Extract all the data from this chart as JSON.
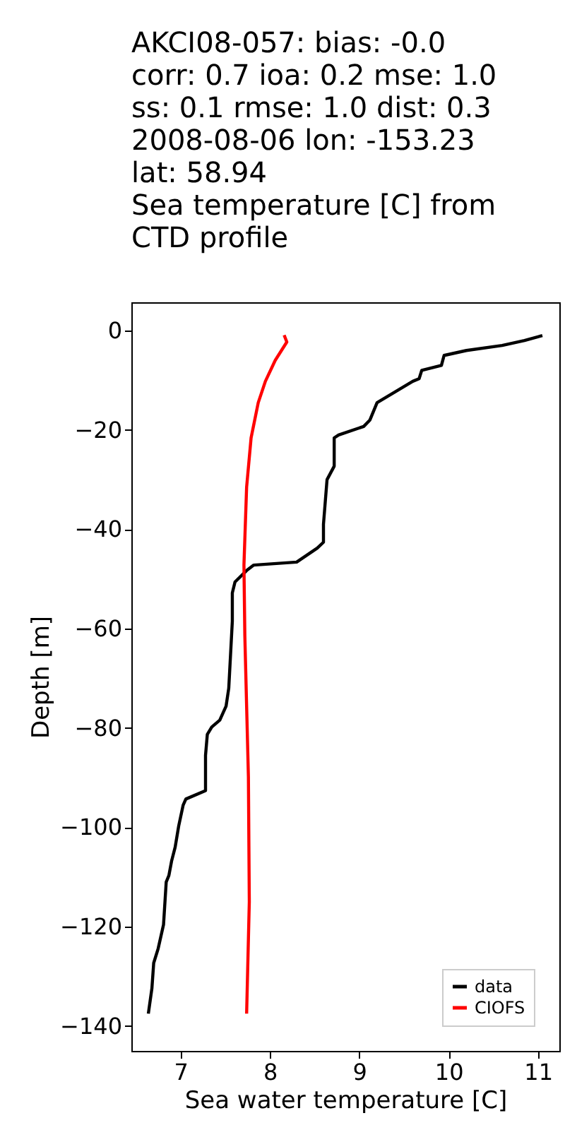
{
  "chart_data": {
    "type": "line",
    "title": "AKCI08-057: bias: -0.0\ncorr: 0.7  ioa: 0.2  mse: 1.0\n ss: 0.1  rmse: 1.0  dist: 0.3\n\n2008-08-06 lon: -153.23\nlat: 58.94\nSea temperature [C] from\nCTD profile",
    "xlabel": "Sea water temperature [C]",
    "ylabel": "Depth [m]",
    "xlim": [
      6.45,
      11.24
    ],
    "ylim": [
      -145,
      5.7
    ],
    "xticks": [
      7,
      8,
      9,
      10,
      11
    ],
    "yticks": [
      -140,
      -120,
      -100,
      -80,
      -60,
      -40,
      -20,
      0
    ],
    "grid": false,
    "legend": "bottom right",
    "line_style": "solid",
    "marker": "none",
    "series": [
      {
        "name": "data",
        "color": "#000000",
        "x": [
          11.05,
          10.85,
          10.6,
          10.2,
          9.95,
          9.92,
          9.7,
          9.67,
          9.6,
          9.2,
          9.12,
          9.05,
          8.77,
          8.72,
          8.72,
          8.64,
          8.6,
          8.6,
          8.53,
          8.3,
          7.82,
          7.74,
          7.61,
          7.58,
          7.58,
          7.54,
          7.51,
          7.44,
          7.35,
          7.3,
          7.28,
          7.28,
          7.06,
          7.03,
          6.98,
          6.94,
          6.9,
          6.87,
          6.84,
          6.81,
          6.75,
          6.7,
          6.68,
          6.64
        ],
        "values": [
          -1,
          -2,
          -3,
          -4,
          -5,
          -7,
          -8,
          -9.7,
          -10.2,
          -14.5,
          -18,
          -19.3,
          -21,
          -21.6,
          -27.3,
          -30,
          -39,
          -42.6,
          -43.8,
          -46.6,
          -47.2,
          -48.3,
          -50.6,
          -52.8,
          -58.5,
          -72,
          -75.6,
          -78.4,
          -79.8,
          -81.3,
          -85.5,
          -92.6,
          -94.3,
          -95.5,
          -99.7,
          -104,
          -106.8,
          -109.7,
          -111,
          -119.6,
          -124.4,
          -127.3,
          -132.4,
          -137.5
        ]
      },
      {
        "name": "CIOFS",
        "color": "#ff0000",
        "x": [
          8.16,
          8.19,
          8.06,
          7.95,
          7.87,
          7.79,
          7.74,
          7.71,
          7.72,
          7.76,
          7.77,
          7.74
        ],
        "values": [
          -0.9,
          -2.3,
          -6,
          -10.2,
          -14.5,
          -21.6,
          -31.5,
          -47.2,
          -61.4,
          -89.8,
          -115,
          -137.5
        ]
      }
    ]
  }
}
